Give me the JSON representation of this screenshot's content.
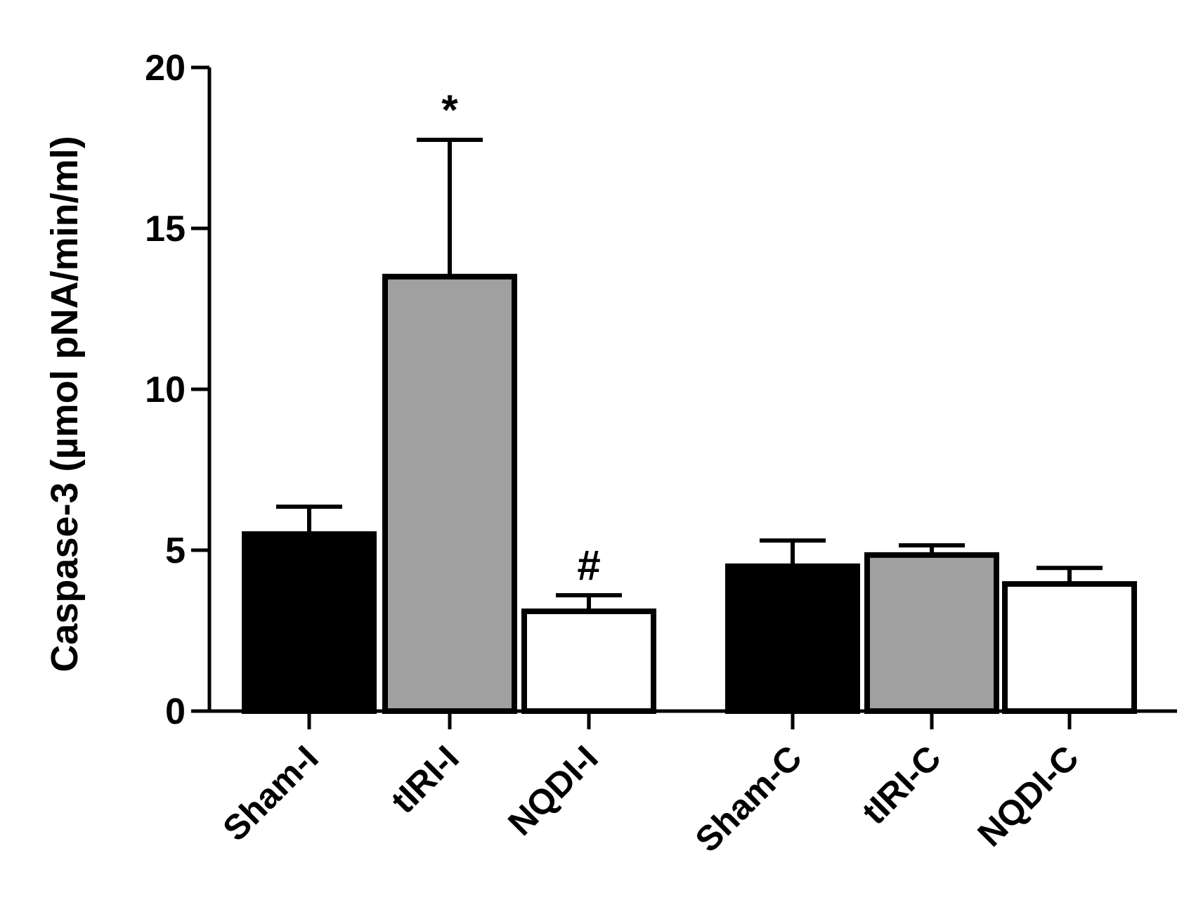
{
  "chart_data": {
    "type": "bar",
    "title": "",
    "xlabel": "",
    "ylabel": "Caspase-3 (µmol pNA/min/ml)",
    "ylim": [
      0,
      20
    ],
    "yticks": [
      0,
      5,
      10,
      15,
      20
    ],
    "grid": false,
    "legend": "none",
    "categories": [
      "Sham-I",
      "tIRI-I",
      "NQDI-I",
      "Sham-C",
      "tIRI-C",
      "NQDI-C"
    ],
    "values": [
      5.5,
      13.5,
      3.1,
      4.5,
      4.85,
      3.95
    ],
    "error_upper": [
      0.85,
      4.25,
      0.5,
      0.8,
      0.3,
      0.5
    ],
    "annotations": [
      "",
      "*",
      "#",
      "",
      "",
      ""
    ],
    "bar_colors": [
      "#000000",
      "#a0a0a0",
      "#ffffff",
      "#000000",
      "#a0a0a0",
      "#ffffff"
    ],
    "edge_color": "#000000"
  }
}
